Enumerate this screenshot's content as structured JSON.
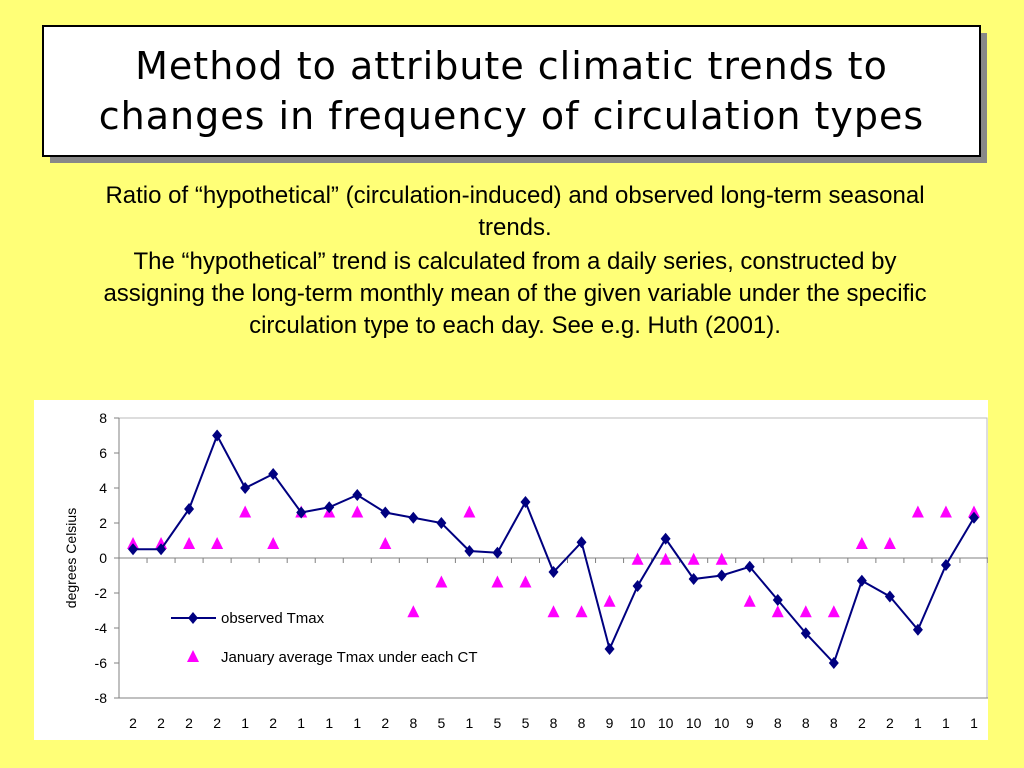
{
  "slide": {
    "title_line1": "Method to attribute climatic trends to",
    "title_line2": "changes in frequency of circulation types",
    "paragraph1": "Ratio of “hypothetical” (circulation-induced) and observed long-term seasonal trends.",
    "paragraph2": "The “hypothetical” trend is calculated from a daily series, constructed by assigning the long-term monthly mean of the given variable under the specific circulation type to each day. See e.g. Huth (2001)."
  },
  "colors": {
    "background": "#ffff77",
    "series_observed": "#000080",
    "series_ct": "#ff00ff"
  },
  "chart_data": {
    "type": "line",
    "ylabel": "degrees Celsius",
    "xlabel": "",
    "ylim": [
      -8,
      8
    ],
    "yticks": [
      8,
      6,
      4,
      2,
      0,
      -2,
      -4,
      -6,
      -8
    ],
    "categories": [
      "2",
      "2",
      "2",
      "2",
      "1",
      "2",
      "1",
      "1",
      "1",
      "2",
      "8",
      "5",
      "1",
      "5",
      "5",
      "8",
      "8",
      "9",
      "10",
      "10",
      "10",
      "10",
      "9",
      "8",
      "8",
      "8",
      "2",
      "2",
      "1",
      "1",
      "1"
    ],
    "series": [
      {
        "name": "observed Tmax",
        "marker": "diamond",
        "line": true,
        "values": [
          0.5,
          0.5,
          2.8,
          7.0,
          4.0,
          4.8,
          2.6,
          2.9,
          3.6,
          2.6,
          2.3,
          2.0,
          0.4,
          0.3,
          3.2,
          -0.8,
          0.9,
          -5.2,
          -1.6,
          1.1,
          -1.2,
          -1.0,
          -0.5,
          -2.4,
          -4.3,
          -6.0,
          -1.3,
          -2.2,
          -4.1,
          -0.4,
          2.3
        ]
      },
      {
        "name": "January average Tmax under each CT",
        "marker": "triangle",
        "line": false,
        "values": [
          0.8,
          0.8,
          0.8,
          0.8,
          2.6,
          0.8,
          2.6,
          2.6,
          2.6,
          0.8,
          -3.1,
          -1.4,
          2.6,
          -1.4,
          -1.4,
          -3.1,
          -3.1,
          -2.5,
          -0.1,
          -0.1,
          -0.1,
          -0.1,
          -2.5,
          -3.1,
          -3.1,
          -3.1,
          0.8,
          0.8,
          2.6,
          2.6,
          2.6
        ]
      }
    ],
    "legend_position": "lower-left inside plot",
    "grid": false
  }
}
